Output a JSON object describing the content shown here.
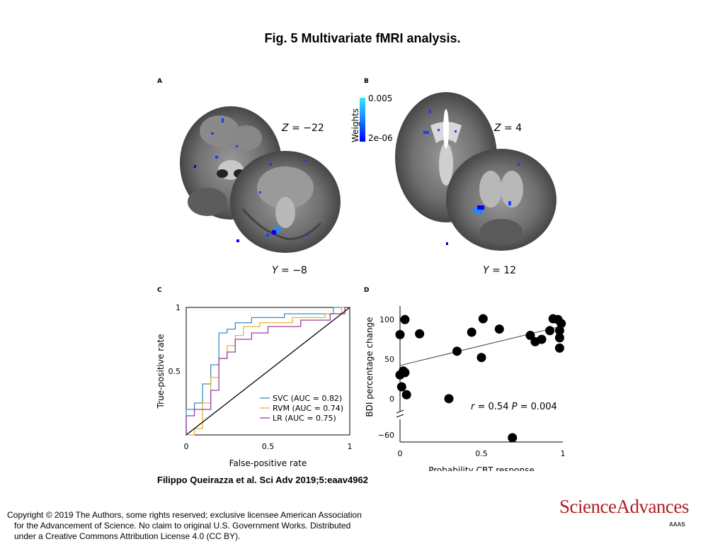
{
  "figure": {
    "title": "Fig. 5 Multivariate fMRI analysis.",
    "citation": "Filippo Queirazza et al. Sci Adv 2019;5:eaav4962"
  },
  "panels": {
    "a": {
      "letter": "A",
      "axial_label_var": "Z",
      "axial_label_val": "= −22",
      "coronal_label_var": "Y",
      "coronal_label_val": "= −8"
    },
    "b": {
      "letter": "B",
      "axial_label_var": "Z",
      "axial_label_val": "= 4",
      "coronal_label_var": "Y",
      "coronal_label_val": "= 12"
    },
    "c": {
      "letter": "C"
    },
    "d": {
      "letter": "D"
    }
  },
  "colorbar": {
    "title": "Weights",
    "max_label": "0.005",
    "min_label": "2e-06",
    "colors": [
      "#35e6ff",
      "#1a8cff",
      "#0000ff"
    ]
  },
  "chart_data": [
    {
      "type": "line",
      "panel": "C",
      "xlabel": "False-positive rate",
      "ylabel": "True-positive rate",
      "xlim": [
        0,
        1
      ],
      "ylim": [
        0,
        1
      ],
      "xticks": [
        "0",
        "0.5",
        "1"
      ],
      "yticks": [
        "0.5",
        "1"
      ],
      "legend_position": "bottom-right",
      "series": [
        {
          "name": "SVC (AUC = 0.82)",
          "color": "#3b8fc4",
          "x": [
            0,
            0,
            0.05,
            0.05,
            0.1,
            0.1,
            0.15,
            0.15,
            0.2,
            0.2,
            0.25,
            0.25,
            0.3,
            0.3,
            0.4,
            0.4,
            0.6,
            0.6,
            0.9,
            0.9,
            0.95,
            0.95,
            1
          ],
          "y": [
            0,
            0.2,
            0.2,
            0.25,
            0.25,
            0.4,
            0.4,
            0.55,
            0.55,
            0.8,
            0.8,
            0.83,
            0.83,
            0.88,
            0.88,
            0.92,
            0.92,
            0.95,
            0.95,
            1,
            1,
            1,
            1
          ]
        },
        {
          "name": "RVM (AUC = 0.74)",
          "color": "#e8b23a",
          "x": [
            0,
            0.05,
            0.05,
            0.1,
            0.1,
            0.15,
            0.15,
            0.2,
            0.2,
            0.25,
            0.25,
            0.3,
            0.3,
            0.35,
            0.35,
            0.45,
            0.45,
            0.65,
            0.65,
            0.85,
            0.85,
            0.95,
            0.95,
            1
          ],
          "y": [
            0,
            0,
            0.05,
            0.05,
            0.25,
            0.25,
            0.45,
            0.45,
            0.6,
            0.6,
            0.7,
            0.7,
            0.78,
            0.78,
            0.85,
            0.85,
            0.88,
            0.88,
            0.92,
            0.92,
            0.95,
            0.95,
            1,
            1
          ]
        },
        {
          "name": "LR (AUC = 0.75)",
          "color": "#9b3fa0",
          "x": [
            0,
            0,
            0.05,
            0.05,
            0.15,
            0.15,
            0.2,
            0.2,
            0.25,
            0.25,
            0.3,
            0.3,
            0.4,
            0.4,
            0.5,
            0.5,
            0.7,
            0.7,
            0.88,
            0.88,
            0.97,
            0.97,
            1
          ],
          "y": [
            0,
            0.15,
            0.15,
            0.2,
            0.2,
            0.35,
            0.35,
            0.6,
            0.6,
            0.65,
            0.65,
            0.75,
            0.75,
            0.8,
            0.8,
            0.85,
            0.85,
            0.9,
            0.9,
            0.95,
            0.95,
            1,
            1
          ]
        },
        {
          "name": "",
          "color": "#000000",
          "x": [
            0,
            1
          ],
          "y": [
            0,
            1
          ]
        }
      ]
    },
    {
      "type": "scatter",
      "panel": "D",
      "xlabel": "Probability CBT response",
      "ylabel": "BDI percentage change",
      "xlim": [
        0,
        1
      ],
      "ylim": [
        -70,
        110
      ],
      "xticks": [
        "0",
        "0.5",
        "1"
      ],
      "yticks": [
        "100",
        "50",
        "0",
        "−60"
      ],
      "axis_break": true,
      "annotation_r": "r",
      "annotation_r_val": "= 0.54",
      "annotation_p": "P",
      "annotation_p_val": "= 0.004",
      "fit_line": {
        "x": [
          0,
          1
        ],
        "y": [
          42,
          92
        ]
      },
      "points": [
        {
          "x": 0.03,
          "y": 100
        },
        {
          "x": 0.0,
          "y": 81
        },
        {
          "x": 0.12,
          "y": 82
        },
        {
          "x": 0.02,
          "y": 35
        },
        {
          "x": 0.03,
          "y": 33
        },
        {
          "x": 0.0,
          "y": 30
        },
        {
          "x": 0.01,
          "y": 15
        },
        {
          "x": 0.04,
          "y": 5
        },
        {
          "x": 0.3,
          "y": 0
        },
        {
          "x": 0.35,
          "y": 60
        },
        {
          "x": 0.44,
          "y": 84
        },
        {
          "x": 0.5,
          "y": 52
        },
        {
          "x": 0.51,
          "y": 101
        },
        {
          "x": 0.61,
          "y": 88
        },
        {
          "x": 0.69,
          "y": -65
        },
        {
          "x": 0.8,
          "y": 80
        },
        {
          "x": 0.83,
          "y": 72
        },
        {
          "x": 0.87,
          "y": 75
        },
        {
          "x": 0.92,
          "y": 86
        },
        {
          "x": 0.94,
          "y": 101
        },
        {
          "x": 0.97,
          "y": 100
        },
        {
          "x": 0.99,
          "y": 95
        },
        {
          "x": 0.98,
          "y": 86
        },
        {
          "x": 0.98,
          "y": 77
        },
        {
          "x": 0.98,
          "y": 64
        }
      ]
    }
  ],
  "copyright": {
    "line1": "Copyright © 2019 The Authors, some rights reserved; exclusive licensee American Association",
    "line2": "for the Advancement of Science. No claim to original U.S. Government Works. Distributed",
    "line3": "under a Creative Commons Attribution License 4.0 (CC BY)."
  },
  "brand": {
    "name": "ScienceAdvances",
    "sub": "AAAS",
    "color": "#b01e23"
  }
}
